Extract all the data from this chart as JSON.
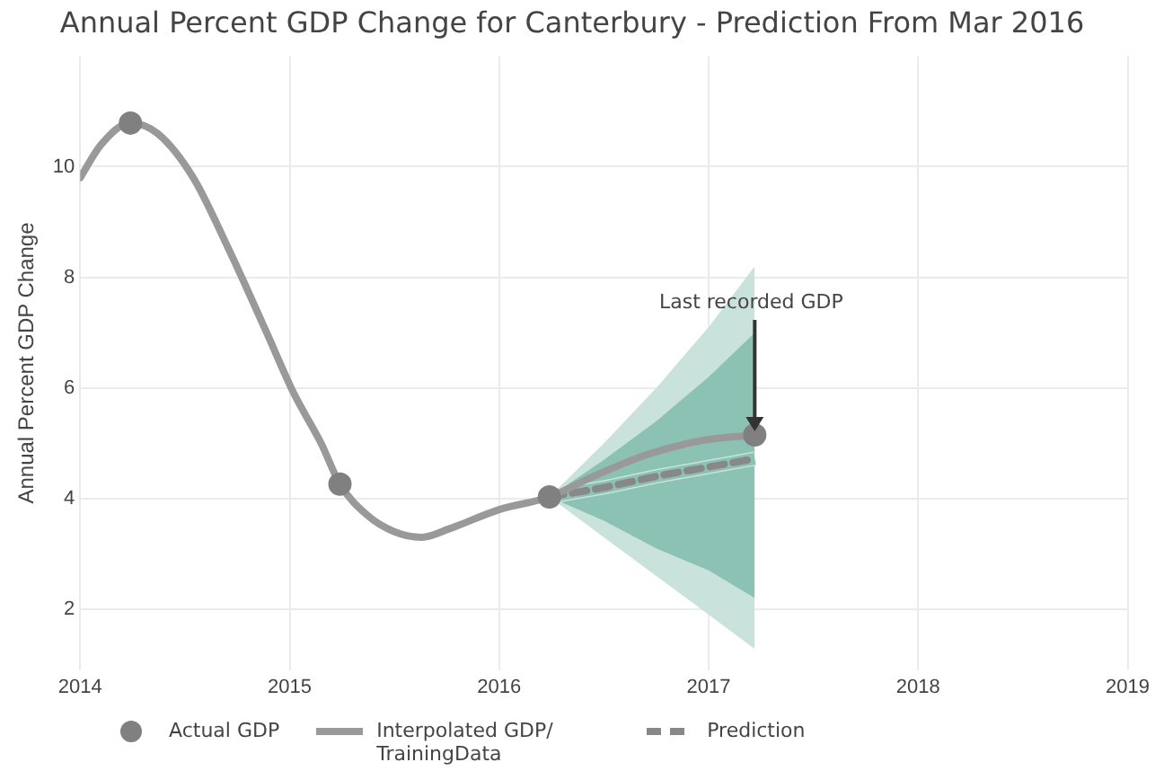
{
  "chart_data": {
    "type": "line",
    "title": "Annual Percent GDP Change for Canterbury - Prediction From Mar 2016",
    "ylabel": "Annual Percent GDP Change",
    "xlim": [
      2014,
      2019
    ],
    "xticks": [
      2014,
      2015,
      2016,
      2017,
      2018,
      2019
    ],
    "ylim": [
      0.9,
      12
    ],
    "yticks": [
      2,
      4,
      6,
      8,
      10
    ],
    "grid": true,
    "legend": "bottom",
    "annotations": [
      {
        "text": "Last recorded GDP",
        "x": 2017.22,
        "y": 5.15
      }
    ],
    "series": [
      {
        "type": "line",
        "color": "#c9e2db",
        "x": [
          2016.24,
          2016.5,
          2016.75,
          2017.0,
          2017.22
        ],
        "values": [
          4.03,
          4.2,
          4.4,
          4.57,
          4.72
        ],
        "lower": [
          4.03,
          3.3,
          2.6,
          1.9,
          1.28
        ],
        "upper": [
          4.03,
          5.0,
          6.0,
          7.1,
          8.2
        ]
      },
      {
        "type": "line",
        "color": "#8cc2b4",
        "x": [
          2016.24,
          2016.5,
          2016.75,
          2017.0,
          2017.22
        ],
        "values": [
          4.03,
          4.2,
          4.4,
          4.57,
          4.72
        ],
        "lower": [
          4.03,
          3.6,
          3.1,
          2.7,
          2.2
        ],
        "upper": [
          4.03,
          4.7,
          5.4,
          6.2,
          7.0
        ]
      },
      {
        "name": "Actual GDP",
        "type": "scatter",
        "color": "#808080",
        "marker": "circle",
        "x": [
          2014.24,
          2015.24,
          2016.24,
          2017.22
        ],
        "values": [
          10.79,
          4.26,
          4.03,
          5.15
        ]
      },
      {
        "name": "Interpolated GDP/ TrainingData",
        "color": "#999999",
        "line_style": "solid",
        "x": [
          2014.0,
          2014.1,
          2014.24,
          2014.37,
          2014.54,
          2014.71,
          2014.89,
          2015.02,
          2015.15,
          2015.24,
          2015.37,
          2015.5,
          2015.63,
          2015.76,
          2016.0,
          2016.24,
          2016.45,
          2016.71,
          2016.97,
          2017.22
        ],
        "values": [
          9.8,
          10.4,
          10.79,
          10.6,
          9.8,
          8.5,
          7.0,
          5.9,
          5.0,
          4.26,
          3.7,
          3.4,
          3.3,
          3.45,
          3.8,
          4.03,
          4.4,
          4.8,
          5.05,
          5.15
        ]
      },
      {
        "name": "Prediction",
        "color": "#888888",
        "line_style": "dashed",
        "x": [
          2016.24,
          2016.5,
          2016.75,
          2017.0,
          2017.22
        ],
        "values": [
          4.03,
          4.2,
          4.4,
          4.57,
          4.72
        ]
      }
    ]
  }
}
